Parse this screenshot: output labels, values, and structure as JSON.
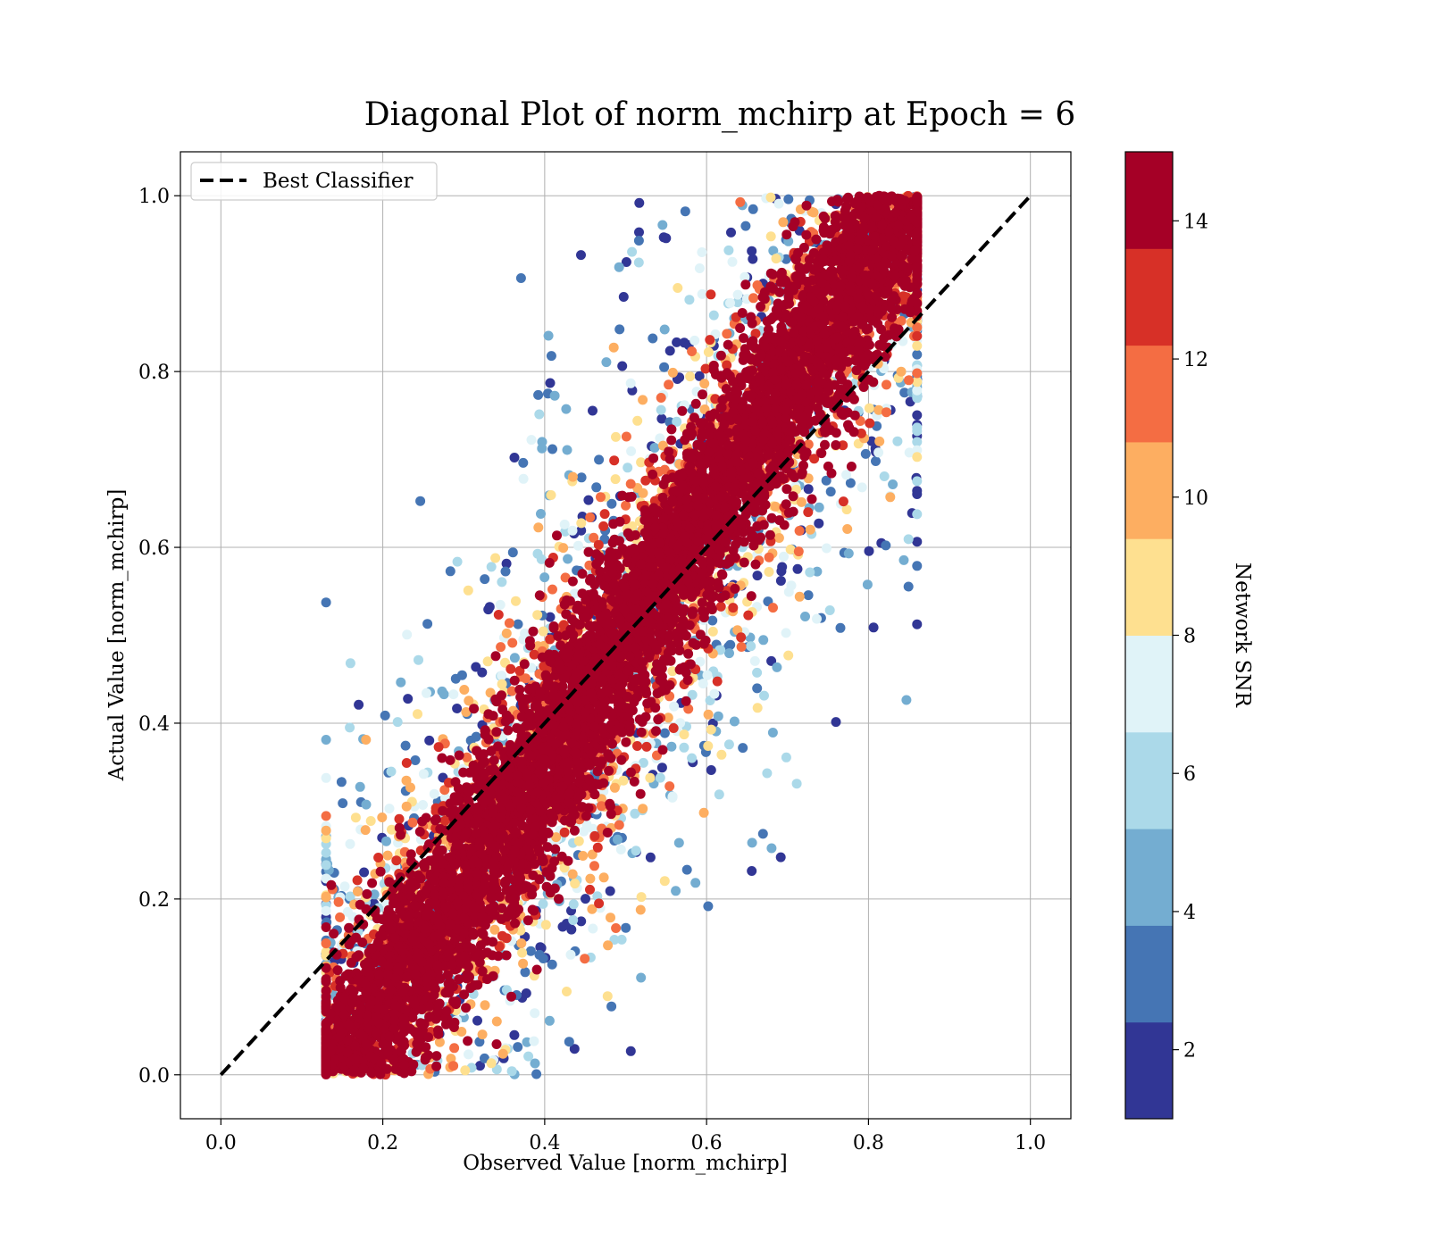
{
  "chart_data": {
    "type": "scatter",
    "title": "Diagonal Plot of norm_mchirp at Epoch = 6",
    "xlabel": "Observed Value [norm_mchirp]",
    "ylabel": "Actual Value [norm_mchirp]",
    "xlim": [
      -0.05,
      1.05
    ],
    "ylim": [
      -0.05,
      1.05
    ],
    "xticks": [
      "0.0",
      "0.2",
      "0.4",
      "0.6",
      "0.8",
      "1.0"
    ],
    "yticks": [
      "0.0",
      "0.2",
      "0.4",
      "0.6",
      "0.8",
      "1.0"
    ],
    "grid": true,
    "legend": {
      "placement": "upper-left",
      "entries": [
        {
          "label": "Best Classifier",
          "style": "dashed",
          "color": "#000000"
        }
      ]
    },
    "reference_line": {
      "name": "Best Classifier",
      "x": [
        0.0,
        1.0
      ],
      "y": [
        0.0,
        1.0
      ]
    },
    "colorbar": {
      "label": "Network SNR",
      "range": [
        1,
        15
      ],
      "ticks": [
        "2",
        "4",
        "6",
        "8",
        "10",
        "12",
        "14"
      ],
      "colors": [
        "#313695",
        "#4575b4",
        "#74add1",
        "#abd9e9",
        "#e0f3f8",
        "#fee090",
        "#fdae61",
        "#f46d43",
        "#d73027",
        "#a50026"
      ]
    },
    "scatter_description": {
      "points_approx": 9000,
      "x_range": [
        0.13,
        0.86
      ],
      "y_range": [
        0.0,
        1.0
      ],
      "relation": "y ≈ x with wide spread; low-SNR points farther from diagonal"
    }
  }
}
